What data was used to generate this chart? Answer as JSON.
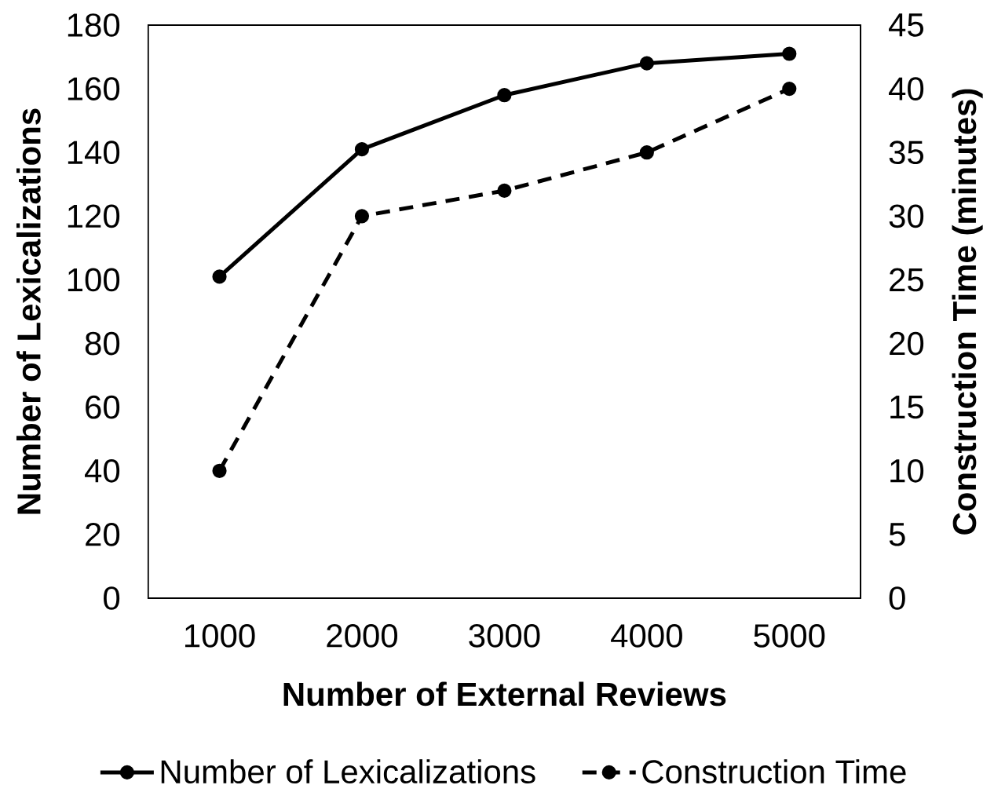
{
  "chart_data": {
    "type": "line",
    "xlabel": "Number of External Reviews",
    "ylabel": "Number of Lexicalizations",
    "y2label": "Construction Time (minutes)",
    "categories": [
      "1000",
      "2000",
      "3000",
      "4000",
      "5000"
    ],
    "ylim": [
      0,
      180
    ],
    "yticks": [
      0,
      20,
      40,
      60,
      80,
      100,
      120,
      140,
      160,
      180
    ],
    "y2lim": [
      0,
      45
    ],
    "y2ticks": [
      0,
      5,
      10,
      15,
      20,
      25,
      30,
      35,
      40,
      45
    ],
    "series": [
      {
        "name": "Number of Lexicalizations",
        "color": "#000000",
        "values": [
          101,
          141,
          158,
          168,
          171
        ],
        "line_style": "solid"
      },
      {
        "name": "Construction Time",
        "color": "#000000",
        "values": [
          10,
          30,
          32,
          35,
          40
        ],
        "axis": "y2",
        "line_style": "dashed"
      }
    ],
    "marker": "circle",
    "legend": "bottom",
    "grid": false
  }
}
